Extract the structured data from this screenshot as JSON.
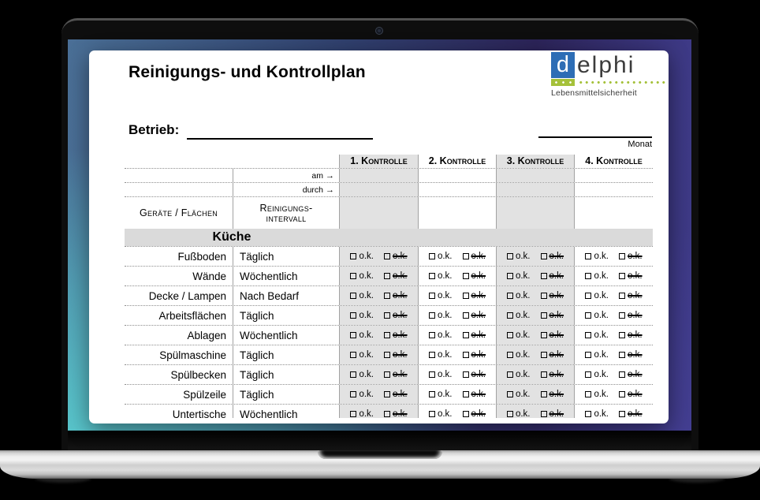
{
  "screen_document": {
    "title": "Reinigungs- und Kontrollplan",
    "logo": {
      "brand_d": "d",
      "brand_rest": "elphi",
      "subtitle": "Lebensmittelsicherheit"
    },
    "fields": {
      "betrieb_label": "Betrieb:",
      "monat_label": "Monat"
    },
    "table": {
      "control_headers": [
        "1. Kontrolle",
        "2. Kontrolle",
        "3. Kontrolle",
        "4. Kontrolle"
      ],
      "meta_rows": [
        {
          "label": "am",
          "arrow": "→"
        },
        {
          "label": "durch",
          "arrow": "→"
        }
      ],
      "device_col_header": "Geräte / Flächen",
      "interval_col_header_line1": "Reinigungs-",
      "interval_col_header_line2": "intervall",
      "section_header": "Küche",
      "checkbox_ok": "o.k.",
      "checkbox_not_ok": "o.k.",
      "rows": [
        {
          "name": "Fußboden",
          "interval": "Täglich"
        },
        {
          "name": "Wände",
          "interval": "Wöchentlich"
        },
        {
          "name": "Decke / Lampen",
          "interval": "Nach Bedarf"
        },
        {
          "name": "Arbeitsflächen",
          "interval": "Täglich"
        },
        {
          "name": "Ablagen",
          "interval": "Wöchentlich"
        },
        {
          "name": "Spülmaschine",
          "interval": "Täglich"
        },
        {
          "name": "Spülbecken",
          "interval": "Täglich"
        },
        {
          "name": "Spülzeile",
          "interval": "Täglich"
        },
        {
          "name": "Untertische",
          "interval": "Wöchentlich"
        }
      ]
    },
    "colors": {
      "logo_blue": "#2d6db5",
      "logo_green": "#a5c13a",
      "column_shade": "#e2e2e2",
      "section_band": "#dadada",
      "screen_gradient": [
        "#4a6f96",
        "#58c5cb",
        "#2c2459",
        "#3e3a87"
      ]
    }
  }
}
